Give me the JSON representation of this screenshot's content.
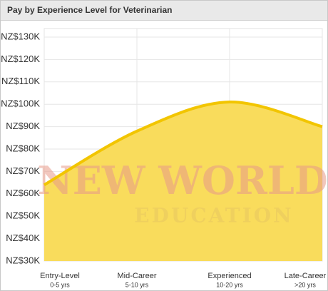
{
  "chart_data": {
    "type": "area",
    "title": "Pay by Experience Level for Veterinarian",
    "categories": [
      "Entry-Level",
      "Mid-Career",
      "Experienced",
      "Late-Career"
    ],
    "sublabels": [
      "0-5 yrs",
      "5-10 yrs",
      "10-20 yrs",
      ">20 yrs"
    ],
    "values": [
      64,
      88,
      101,
      90
    ],
    "color": "#f2c500",
    "fill": "#f9dc5c",
    "ylim": [
      30,
      130
    ],
    "yticks": [
      {
        "value": 30,
        "label": "NZ$30K"
      },
      {
        "value": 40,
        "label": "NZ$40K"
      },
      {
        "value": 50,
        "label": "NZ$50K"
      },
      {
        "value": 60,
        "label": "NZ$60K"
      },
      {
        "value": 70,
        "label": "NZ$70K"
      },
      {
        "value": 80,
        "label": "NZ$80K"
      },
      {
        "value": 90,
        "label": "NZ$90K"
      },
      {
        "value": 100,
        "label": "NZ$100K"
      },
      {
        "value": 110,
        "label": "NZ$110K"
      },
      {
        "value": 120,
        "label": "NZ$120K"
      },
      {
        "value": 130,
        "label": "NZ$130K"
      }
    ],
    "grid": true,
    "watermark": [
      "NEW WORLD",
      "EDUCATION"
    ]
  }
}
